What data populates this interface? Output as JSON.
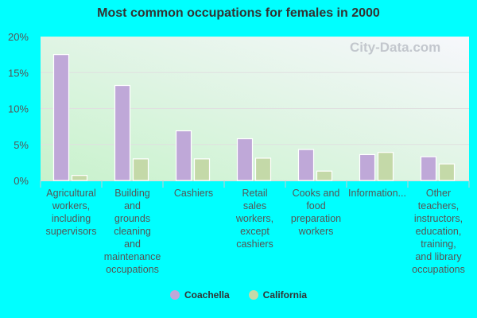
{
  "chart_data": {
    "type": "bar",
    "title": "Most common occupations for females in 2000",
    "categories": [
      [
        "Agricultural",
        "workers,",
        "including",
        "supervisors"
      ],
      [
        "Building",
        "and",
        "grounds",
        "cleaning",
        "and",
        "maintenance",
        "occupations"
      ],
      [
        "Cashiers"
      ],
      [
        "Retail",
        "sales",
        "workers,",
        "except",
        "cashiers"
      ],
      [
        "Cooks and",
        "food",
        "preparation",
        "workers"
      ],
      [
        "Information..."
      ],
      [
        "Other",
        "teachers,",
        "instructors,",
        "education,",
        "training,",
        "and library",
        "occupations"
      ]
    ],
    "series": [
      {
        "name": "Coachella",
        "color": "#bfa8d8",
        "values": [
          17.5,
          13.2,
          6.9,
          5.8,
          4.3,
          3.6,
          3.3
        ]
      },
      {
        "name": "California",
        "color": "#c4d9a8",
        "values": [
          0.7,
          3.0,
          3.0,
          3.1,
          1.3,
          3.9,
          2.3
        ]
      }
    ],
    "ylim": [
      0,
      20
    ],
    "yticks": [
      "0%",
      "5%",
      "10%",
      "15%",
      "20%"
    ],
    "grid": true,
    "legend": "bottom",
    "watermark": "City-Data.com"
  }
}
